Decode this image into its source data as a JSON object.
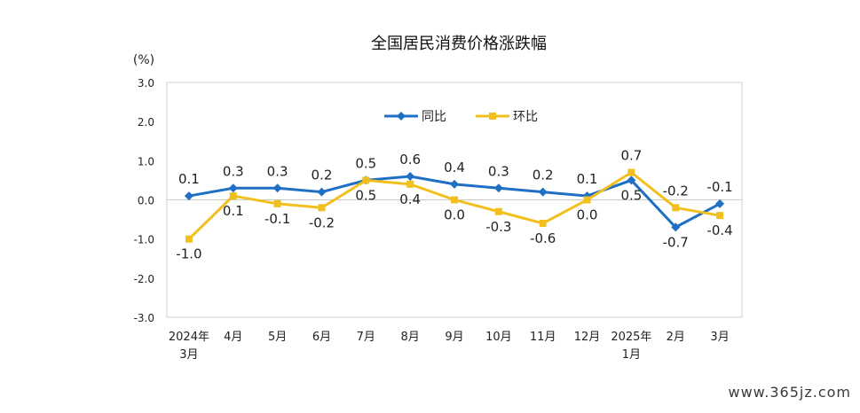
{
  "chart_data": {
    "type": "line",
    "title": "全国居民消费价格涨跌幅",
    "ylabel": "(%)",
    "ylim": [
      -3.0,
      3.0
    ],
    "yticks": [
      "3.0",
      "2.0",
      "1.0",
      "0.0",
      "-1.0",
      "-2.0",
      "-3.0"
    ],
    "categories": [
      [
        "2024年",
        "3月"
      ],
      [
        "4月"
      ],
      [
        "5月"
      ],
      [
        "6月"
      ],
      [
        "7月"
      ],
      [
        "8月"
      ],
      [
        "9月"
      ],
      [
        "10月"
      ],
      [
        "11月"
      ],
      [
        "12月"
      ],
      [
        "2025年",
        "1月"
      ],
      [
        "2月"
      ],
      [
        "3月"
      ]
    ],
    "series": [
      {
        "name": "同比",
        "color": "#1f6fc5",
        "marker": "diamond",
        "values": [
          0.1,
          0.3,
          0.3,
          0.2,
          0.5,
          0.6,
          0.4,
          0.3,
          0.2,
          0.1,
          0.5,
          -0.7,
          -0.1
        ],
        "labels": [
          "0.1",
          "0.3",
          "0.3",
          "0.2",
          "0.5",
          "0.6",
          "0.4",
          "0.3",
          "0.2",
          "0.1",
          "0.5",
          "-0.7",
          "-0.1"
        ]
      },
      {
        "name": "环比",
        "color": "#f2c01e",
        "marker": "square",
        "values": [
          -1.0,
          0.1,
          -0.1,
          -0.2,
          0.5,
          0.4,
          0.0,
          -0.3,
          -0.6,
          0.0,
          0.7,
          -0.2,
          -0.4
        ],
        "labels": [
          "-1.0",
          "0.1",
          "-0.1",
          "-0.2",
          "0.5",
          "0.4",
          "0.0",
          "-0.3",
          "-0.6",
          "0.0",
          "0.7",
          "-0.2",
          "-0.4"
        ]
      }
    ],
    "legend_position": "top-center",
    "grid": false
  },
  "watermark": "www.365jz.com"
}
